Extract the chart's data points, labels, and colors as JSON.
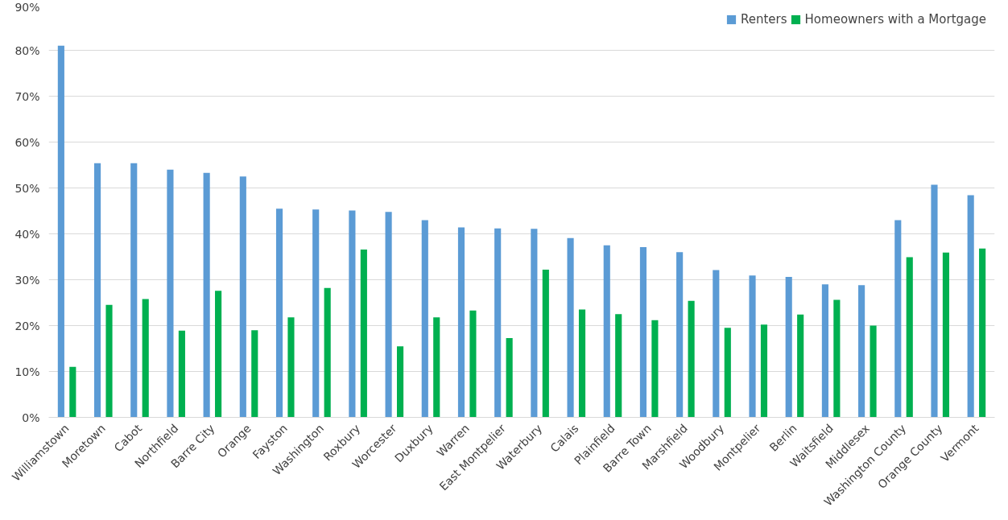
{
  "chart_data": {
    "type": "bar",
    "categories": [
      "Williamstown",
      "Moretown",
      "Cabot",
      "Northfield",
      "Barre City",
      "Orange",
      "Fayston",
      "Washington",
      "Roxbury",
      "Worcester",
      "Duxbury",
      "Warren",
      "East Montpelier",
      "Waterbury",
      "Calais",
      "Plainfield",
      "Barre Town",
      "Marshfield",
      "Woodbury",
      "Montpelier",
      "Berlin",
      "Waitsfield",
      "Middlesex",
      "Washington County",
      "Orange County",
      "Vermont"
    ],
    "series": [
      {
        "name": "Renters",
        "color": "#5b9bd5",
        "values": [
          81,
          55.4,
          55.4,
          54,
          53.3,
          52.5,
          45.5,
          45.3,
          45.1,
          44.8,
          43,
          41.4,
          41.2,
          41.1,
          39.1,
          37.5,
          37.1,
          36,
          32.1,
          30.9,
          30.6,
          29,
          28.8,
          43,
          50.7,
          48.4
        ]
      },
      {
        "name": "Homeowners with a Mortgage",
        "color": "#00b050",
        "values": [
          11,
          24.5,
          25.8,
          18.9,
          27.6,
          19,
          21.8,
          28.2,
          36.6,
          15.5,
          21.8,
          23.3,
          17.3,
          32.2,
          23.5,
          22.5,
          21.2,
          25.4,
          19.5,
          20.2,
          22.4,
          25.6,
          20,
          34.9,
          35.9,
          36.8
        ]
      }
    ],
    "ylim": [
      0,
      90
    ],
    "yticks": [
      {
        "value": 0,
        "label": "0%"
      },
      {
        "value": 10,
        "label": "10%"
      },
      {
        "value": 20,
        "label": "20%"
      },
      {
        "value": 30,
        "label": "30%"
      },
      {
        "value": 40,
        "label": "40%"
      },
      {
        "value": 50,
        "label": "50%"
      },
      {
        "value": 60,
        "label": "60%"
      },
      {
        "value": 70,
        "label": "70%"
      },
      {
        "value": 80,
        "label": "80%"
      },
      {
        "value": 90,
        "label": "90%"
      }
    ],
    "grid": "y",
    "legend": "top right"
  }
}
